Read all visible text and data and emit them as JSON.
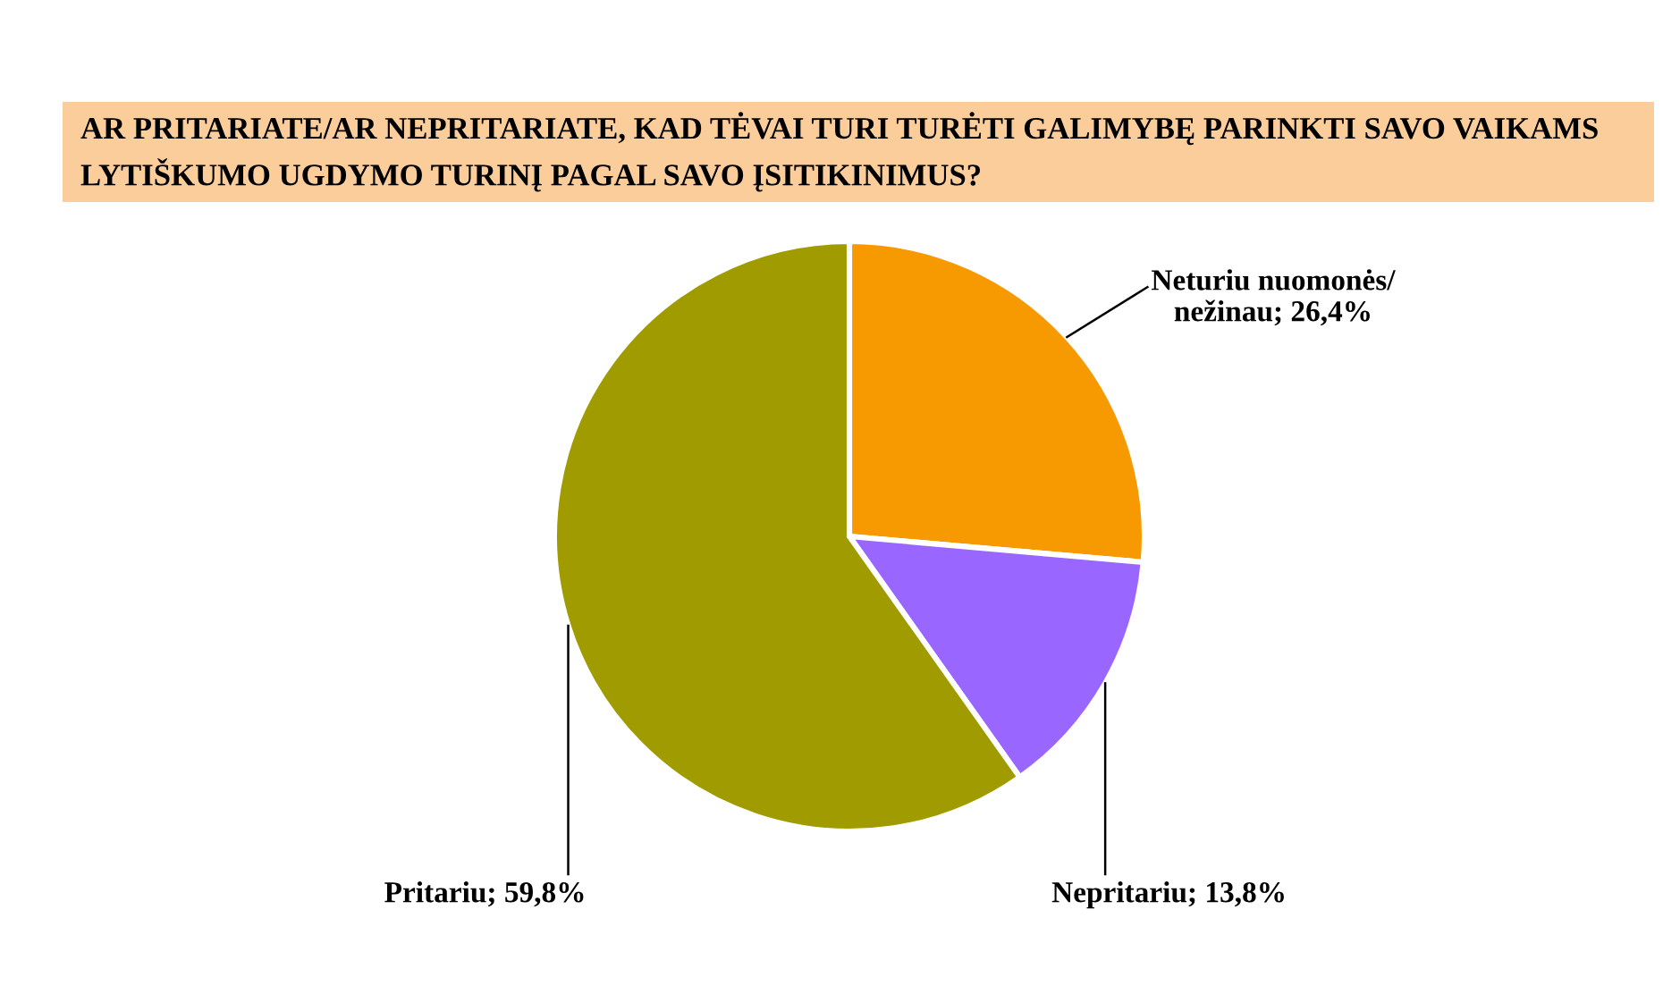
{
  "chart_data": {
    "type": "pie",
    "title": "AR PRITARIATE/AR NEPRITARIATE, KAD TĖVAI TURI TURĖTI GALIMYBĘ PARINKTI SAVO VAIKAMS LYTIŠKUMO UGDYMO TURINĮ PAGAL SAVO ĮSITIKINIMUS?",
    "categories": [
      "Neturiu nuomonės/\nnežinau",
      "Nepritariu",
      "Pritariu"
    ],
    "values": [
      26.4,
      13.8,
      59.8
    ],
    "colors": [
      "#f79900",
      "#9966ff",
      "#a09c00"
    ],
    "value_labels": [
      "26,4%",
      "13,8%",
      "59,8%"
    ]
  }
}
